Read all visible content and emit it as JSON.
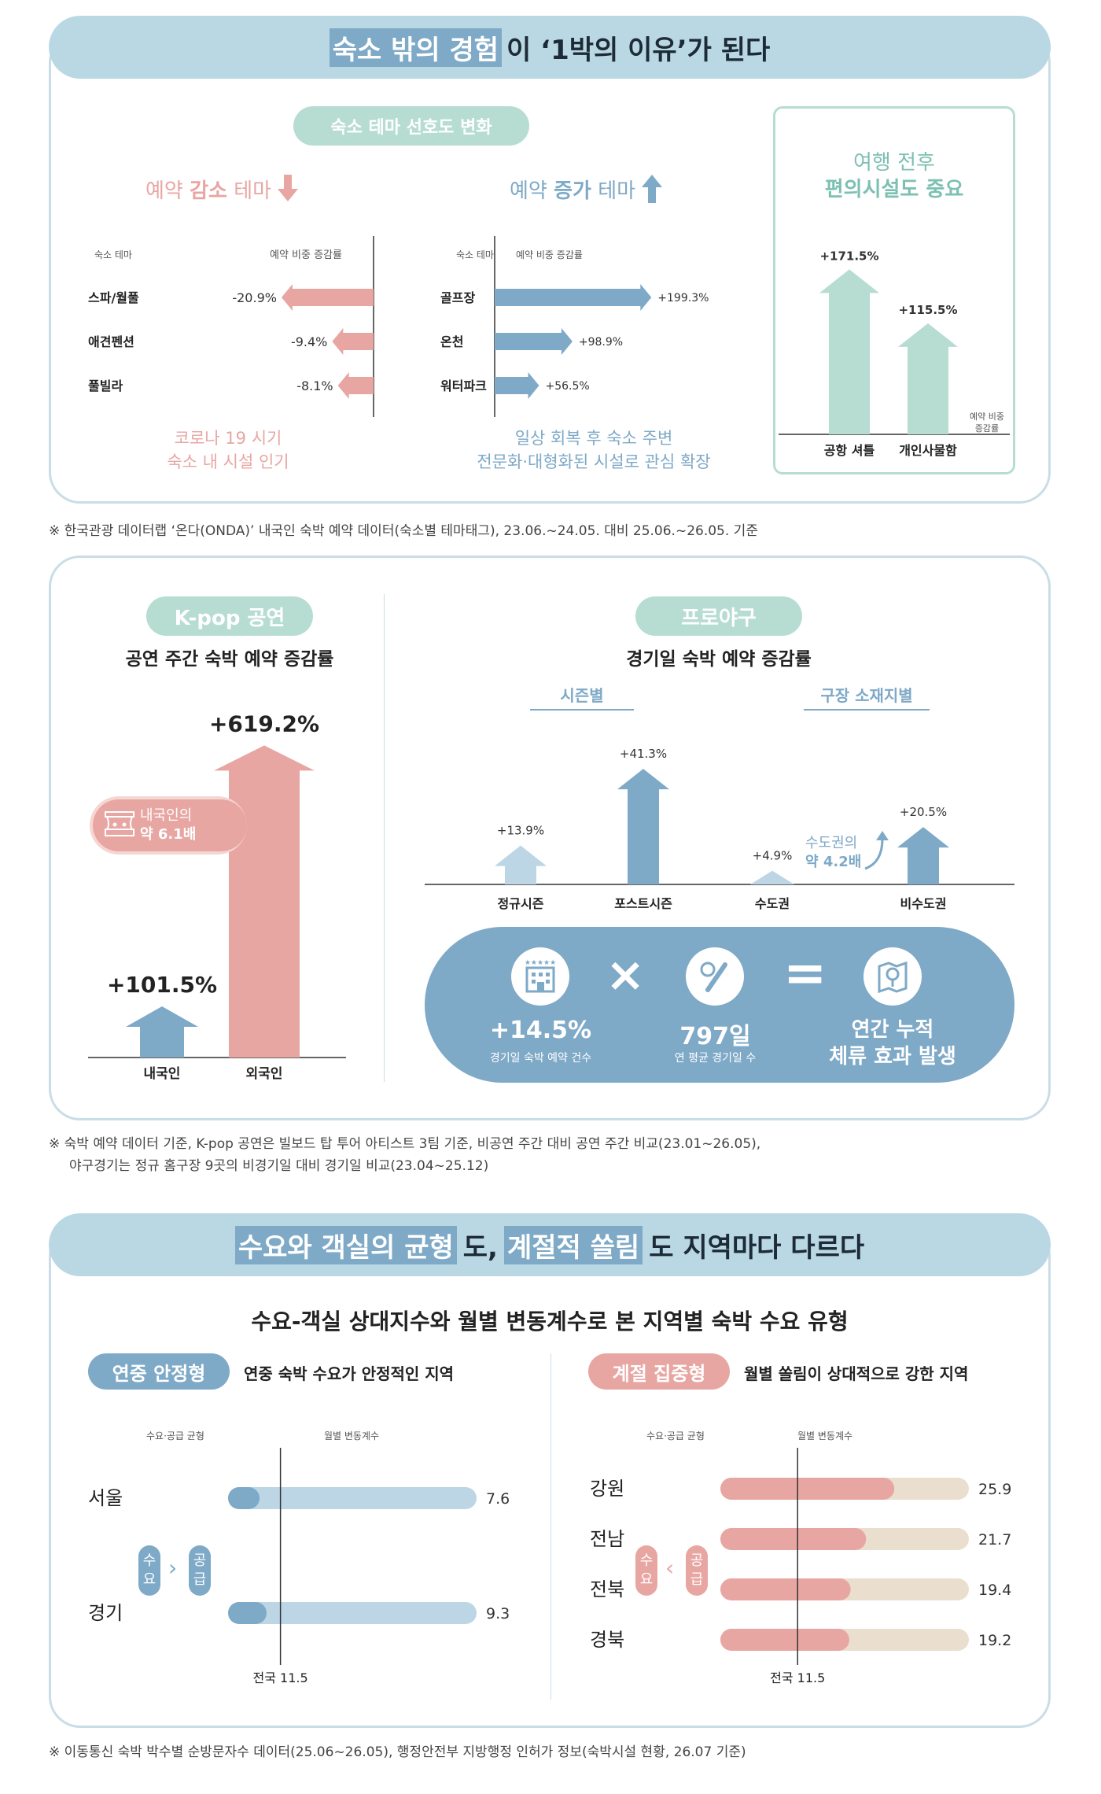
{
  "s1": {
    "title_hl": "숙소 밖의 경험",
    "title_rest": "이 ‘1박의 이유’가 된다",
    "pill": "숙소 테마 선호도 변화",
    "dec_title_a": "예약 ",
    "dec_title_b": "감소",
    "dec_title_c": " 테마",
    "inc_title_a": "예약 ",
    "inc_title_b": "증가",
    "inc_title_c": " 테마",
    "dec_col1": "숙소 테마",
    "dec_col2": "예약 비중 증감률",
    "inc_col1": "숙소 테마",
    "inc_col2": "예약 비중 증감률",
    "dec_note_1": "코로나 19 시기",
    "dec_note_2": "숙소 내 시설 인기",
    "inc_note_1": "일상 회복 후 숙소 주변",
    "inc_note_2": "전문화·대형화된 시설로 관심 확장",
    "side_title_1": "여행 전후",
    "side_title_2": "편의시설도 중요",
    "side_axis_1": "예약 비중",
    "side_axis_2": "증감률",
    "footnote": "※ 한국관광 데이터랩 ‘온다(ONDA)’ 내국인 숙박 예약 데이터(숙소별 테마태그), 23.06.~24.05. 대비 25.06.~26.05. 기준"
  },
  "s2": {
    "kpop_pill": "K-pop 공연",
    "kpop_title": "공연 주간 숙박 예약 증감률",
    "kpop_badge_1": "내국인의",
    "kpop_badge_2": "약 6.1배",
    "base_pill": "프로야구",
    "base_title": "경기일 숙박 예약 증감률",
    "season_label": "시즌별",
    "region_label": "구장 소재지별",
    "region_badge_1": "수도권의",
    "region_badge_2": "약 4.2배",
    "eq_1_value": "+14.5%",
    "eq_1_label": "경기일 숙박 예약 건수",
    "eq_2_value": "797일",
    "eq_2_label": "연 평균 경기일 수",
    "eq_3_line1": "연간 누적",
    "eq_3_line2": "체류 효과 발생",
    "times": "×",
    "equals": "=",
    "footnote_1": "※ 숙박 예약 데이터 기준, K-pop 공연은 빌보드 탑 투어 아티스트 3팀 기준, 비공연 주간 대비 공연 주간 비교(23.01~26.05),",
    "footnote_2": "야구경기는 정규 홈구장 9곳의 비경기일 대비 경기일 비교(23.04~25.12)"
  },
  "s3": {
    "title_hl_1": "수요와 객실의 균형",
    "title_mid": "도,",
    "title_hl_2": "계절적 쏠림",
    "title_end": "도 지역마다 다르다",
    "subtitle": "수요-객실 상대지수와 월별 변동계수로 본 지역별 숙박 수요 유형",
    "stable_pill": "연중 안정형",
    "stable_desc": "연중 숙박 수요가 안정적인 지역",
    "season_pill": "계절 집중형",
    "season_desc": "월별 쏠림이 상대적으로 강한 지역",
    "col_a": "수요·공급 균형",
    "col_b": "월별 변동계수",
    "demand_chars": [
      "수",
      "요"
    ],
    "supply_chars": [
      "공",
      "급"
    ],
    "gt": "›",
    "lt": "‹",
    "national": "전국 11.5",
    "footnote": "※ 이동통신 숙박 박수별 순방문자수 데이터(25.06~26.05), 행정안전부 지방행정 인허가 정보(숙박시설 현황, 26.07 기준)"
  },
  "colors": {
    "dec": "#e8a6a3",
    "inc": "#7ea9c7",
    "mint": "#b7ddd2",
    "light_blue": "#bcd6e6",
    "stable_dark": "#7ea9c7",
    "season_dark": "#e8a6a3",
    "season_light": "#eadfcf",
    "panel_border": "#c9dde6"
  },
  "chart_data": [
    {
      "type": "bar",
      "title": "예약 감소 테마",
      "categories": [
        "스파/월풀",
        "애견펜션",
        "풀빌라"
      ],
      "values": [
        -20.9,
        -9.4,
        -8.1
      ],
      "labels": [
        "-20.9%",
        "-9.4%",
        "-8.1%"
      ]
    },
    {
      "type": "bar",
      "title": "예약 증가 테마",
      "categories": [
        "골프장",
        "온천",
        "워터파크"
      ],
      "values": [
        199.3,
        98.9,
        56.5
      ],
      "labels": [
        "+199.3%",
        "+98.9%",
        "+56.5%"
      ]
    },
    {
      "type": "bar",
      "title": "여행 전후 편의시설도 중요",
      "categories": [
        "공항 셔틀",
        "개인사물함"
      ],
      "values": [
        171.5,
        115.5
      ],
      "labels": [
        "+171.5%",
        "+115.5%"
      ]
    },
    {
      "type": "bar",
      "title": "공연 주간 숙박 예약 증감률",
      "categories": [
        "내국인",
        "외국인"
      ],
      "values": [
        101.5,
        619.2
      ],
      "labels": [
        "+101.5%",
        "+619.2%"
      ]
    },
    {
      "type": "bar",
      "title": "경기일 숙박 예약 증감률",
      "categories": [
        "정규시즌",
        "포스트시즌",
        "수도권",
        "비수도권"
      ],
      "values": [
        13.9,
        41.3,
        4.9,
        20.5
      ],
      "labels": [
        "+13.9%",
        "+41.3%",
        "+4.9%",
        "+20.5%"
      ]
    },
    {
      "type": "bar",
      "title": "연중 안정형",
      "categories": [
        "서울",
        "경기"
      ],
      "values": [
        7.6,
        9.3
      ],
      "labels": [
        "7.6",
        "9.3"
      ],
      "reference": 11.5
    },
    {
      "type": "bar",
      "title": "계절 집중형",
      "categories": [
        "강원",
        "전남",
        "전북",
        "경북"
      ],
      "values": [
        25.9,
        21.7,
        19.4,
        19.2
      ],
      "labels": [
        "25.9",
        "21.7",
        "19.4",
        "19.2"
      ],
      "reference": 11.5
    }
  ]
}
